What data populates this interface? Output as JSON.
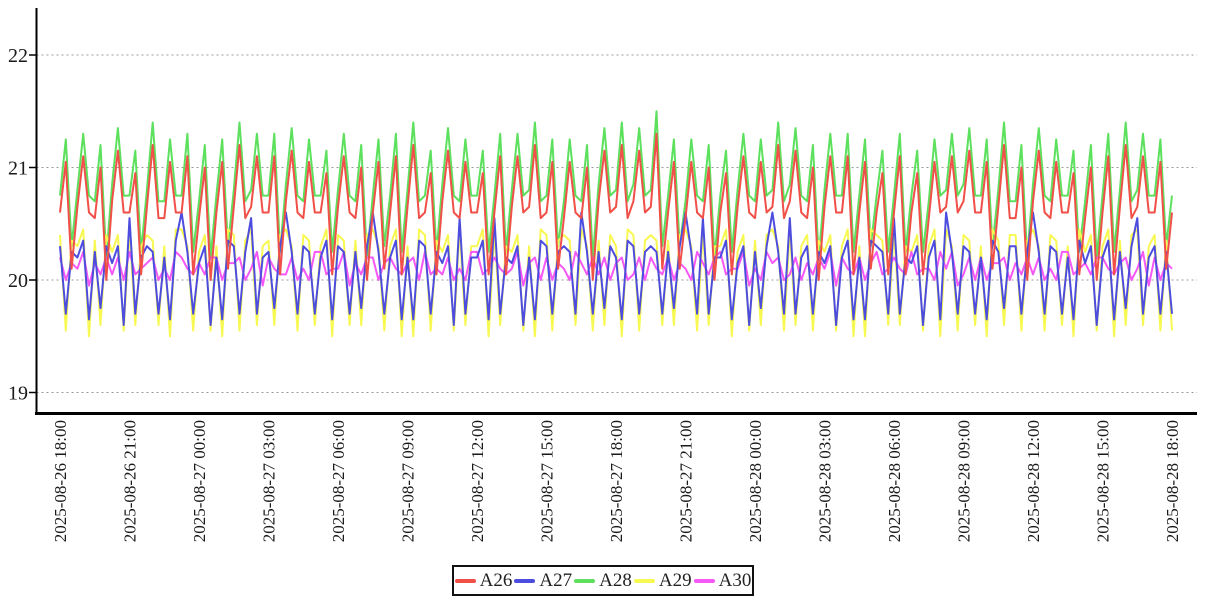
{
  "chart_data": {
    "type": "line",
    "title": "",
    "xlabel": "",
    "ylabel": "",
    "ylim": [
      18.85,
      22.45
    ],
    "x_start": "2025-08-26 18:00",
    "x_end": "2025-08-28 18:00",
    "sample_interval_minutes": 15,
    "grid": "horizontal-dotted",
    "legend_position": "bottom-center",
    "y_axis": {
      "ticks": [
        "22",
        "21",
        "20",
        "19"
      ]
    },
    "x_axis": {
      "ticks": [
        "2025-08-26 18:00",
        "2025-08-26 21:00",
        "2025-08-27 00:00",
        "2025-08-27 03:00",
        "2025-08-27 06:00",
        "2025-08-27 09:00",
        "2025-08-27 12:00",
        "2025-08-27 15:00",
        "2025-08-27 18:00",
        "2025-08-27 21:00",
        "2025-08-28 00:00",
        "2025-08-28 03:00",
        "2025-08-28 06:00",
        "2025-08-28 09:00",
        "2025-08-28 12:00",
        "2025-08-28 15:00",
        "2025-08-28 18:00"
      ]
    },
    "draw_order": [
      "A28",
      "A29",
      "A30",
      "A27",
      "A26"
    ],
    "colors": {
      "axis": "#000000",
      "grid": "#999999",
      "tick_text": "#1a1a1a",
      "background": "#ffffff"
    },
    "series": [
      {
        "name": "A26",
        "color": "#f05048",
        "values": [
          20.6,
          21.05,
          20.1,
          20.65,
          21.1,
          20.6,
          20.55,
          21.0,
          20.0,
          20.7,
          21.15,
          20.6,
          20.6,
          20.95,
          20.05,
          20.65,
          21.2,
          20.55,
          20.55,
          21.05,
          20.6,
          20.6,
          21.1,
          20.05,
          20.55,
          21.0,
          20.0,
          20.6,
          21.05,
          20.1,
          20.65,
          21.2,
          20.55,
          20.65,
          21.1,
          20.6,
          20.6,
          21.1,
          20.05,
          20.7,
          21.15,
          20.6,
          20.55,
          21.05,
          20.6,
          20.6,
          20.95,
          20.05,
          20.65,
          21.1,
          20.6,
          20.55,
          21.0,
          20.0,
          20.6,
          21.05,
          20.1,
          20.6,
          21.1,
          20.05,
          20.65,
          21.2,
          20.55,
          20.6,
          20.95,
          20.05,
          20.7,
          21.15,
          20.6,
          20.55,
          21.05,
          20.6,
          20.6,
          20.95,
          20.05,
          20.6,
          21.1,
          20.05,
          20.65,
          21.1,
          20.6,
          20.65,
          21.2,
          20.55,
          20.6,
          21.05,
          20.1,
          20.55,
          21.05,
          20.6,
          20.55,
          21.0,
          20.0,
          20.7,
          21.15,
          20.6,
          20.65,
          21.2,
          20.55,
          20.7,
          21.15,
          20.6,
          20.65,
          21.3,
          20.1,
          20.6,
          21.05,
          20.1,
          20.55,
          21.05,
          20.6,
          20.55,
          21.0,
          20.0,
          20.6,
          20.95,
          20.05,
          20.65,
          21.1,
          20.6,
          20.55,
          21.05,
          20.6,
          20.65,
          21.2,
          20.55,
          20.7,
          21.15,
          20.6,
          20.55,
          21.0,
          20.0,
          20.65,
          21.1,
          20.6,
          20.6,
          21.1,
          20.05,
          20.6,
          21.05,
          20.1,
          20.6,
          20.95,
          20.05,
          20.6,
          21.1,
          20.05,
          20.6,
          20.95,
          20.05,
          20.55,
          21.05,
          20.6,
          20.65,
          21.1,
          20.6,
          20.7,
          21.15,
          20.6,
          20.6,
          21.05,
          20.1,
          20.65,
          21.2,
          20.55,
          20.55,
          21.0,
          20.0,
          20.7,
          21.15,
          20.6,
          20.55,
          21.05,
          20.6,
          20.6,
          20.95,
          20.05,
          20.55,
          21.0,
          20.0,
          20.6,
          21.1,
          20.05,
          20.65,
          21.2,
          20.55,
          20.65,
          21.1,
          20.6,
          20.6,
          21.05,
          20.1,
          20.6
        ]
      },
      {
        "name": "A27",
        "color": "#4c4cdf",
        "values": [
          20.3,
          19.7,
          20.25,
          20.2,
          20.35,
          19.65,
          20.25,
          19.75,
          20.3,
          20.15,
          20.3,
          19.6,
          20.55,
          19.7,
          20.2,
          20.3,
          20.25,
          19.7,
          20.2,
          19.65,
          20.35,
          20.6,
          20.25,
          19.7,
          20.15,
          20.3,
          19.6,
          20.2,
          19.65,
          20.35,
          20.3,
          19.7,
          20.25,
          20.55,
          19.7,
          20.2,
          20.25,
          19.75,
          20.3,
          20.6,
          20.25,
          19.7,
          20.3,
          20.25,
          19.7,
          20.2,
          20.35,
          19.65,
          20.3,
          20.25,
          19.7,
          20.25,
          19.75,
          20.3,
          20.6,
          20.25,
          19.7,
          20.2,
          20.35,
          19.65,
          20.2,
          19.65,
          20.35,
          20.3,
          19.7,
          20.25,
          20.15,
          20.3,
          19.6,
          20.55,
          19.7,
          20.2,
          20.2,
          20.35,
          19.65,
          20.55,
          19.7,
          20.2,
          20.15,
          20.3,
          19.6,
          20.2,
          19.65,
          20.35,
          20.3,
          19.7,
          20.25,
          20.3,
          20.25,
          19.7,
          20.6,
          20.25,
          19.7,
          20.25,
          19.75,
          20.3,
          20.2,
          19.65,
          20.35,
          20.3,
          19.7,
          20.25,
          20.3,
          20.25,
          19.7,
          20.25,
          19.75,
          20.3,
          20.6,
          20.25,
          19.7,
          20.55,
          19.7,
          20.2,
          20.2,
          20.35,
          19.65,
          20.15,
          20.3,
          19.6,
          20.25,
          19.75,
          20.3,
          20.6,
          20.25,
          19.7,
          20.55,
          19.7,
          20.2,
          20.3,
          19.7,
          20.25,
          20.15,
          20.3,
          19.6,
          20.2,
          20.35,
          19.65,
          20.2,
          19.65,
          20.35,
          20.3,
          20.25,
          19.7,
          20.55,
          19.7,
          20.2,
          20.15,
          20.3,
          19.6,
          20.2,
          20.35,
          19.65,
          20.6,
          20.25,
          19.7,
          20.3,
          20.25,
          19.7,
          20.2,
          19.65,
          20.35,
          20.25,
          19.75,
          20.3,
          20.3,
          19.7,
          20.25,
          20.6,
          20.25,
          19.7,
          20.3,
          20.25,
          19.7,
          20.2,
          19.65,
          20.35,
          20.15,
          20.3,
          19.6,
          20.2,
          20.35,
          19.65,
          20.25,
          19.75,
          20.3,
          20.55,
          19.7,
          20.2,
          20.3,
          19.7,
          20.25,
          19.7
        ]
      },
      {
        "name": "A28",
        "color": "#5de05d",
        "values": [
          20.75,
          21.25,
          20.3,
          20.8,
          21.3,
          20.75,
          20.7,
          21.2,
          20.2,
          20.85,
          21.35,
          20.75,
          20.75,
          21.15,
          20.25,
          20.8,
          21.4,
          20.7,
          20.7,
          21.25,
          20.75,
          20.75,
          21.3,
          20.25,
          20.7,
          21.2,
          20.2,
          20.75,
          21.25,
          20.3,
          20.8,
          21.4,
          20.7,
          20.8,
          21.3,
          20.75,
          20.75,
          21.3,
          20.25,
          20.85,
          21.35,
          20.75,
          20.7,
          21.25,
          20.75,
          20.75,
          21.15,
          20.25,
          20.8,
          21.3,
          20.75,
          20.7,
          21.2,
          20.2,
          20.75,
          21.25,
          20.3,
          20.75,
          21.3,
          20.25,
          20.8,
          21.4,
          20.7,
          20.75,
          21.15,
          20.25,
          20.85,
          21.35,
          20.75,
          20.7,
          21.25,
          20.75,
          20.75,
          21.15,
          20.25,
          20.75,
          21.3,
          20.25,
          20.8,
          21.3,
          20.75,
          20.8,
          21.4,
          20.7,
          20.75,
          21.25,
          20.3,
          20.7,
          21.25,
          20.75,
          20.7,
          21.2,
          20.2,
          20.85,
          21.35,
          20.75,
          20.8,
          21.4,
          20.7,
          20.85,
          21.35,
          20.75,
          20.8,
          21.5,
          20.3,
          20.75,
          21.25,
          20.3,
          20.7,
          21.25,
          20.75,
          20.7,
          21.2,
          20.2,
          20.75,
          21.15,
          20.25,
          20.8,
          21.3,
          20.75,
          20.7,
          21.25,
          20.75,
          20.8,
          21.4,
          20.7,
          20.85,
          21.35,
          20.75,
          20.7,
          21.2,
          20.2,
          20.8,
          21.3,
          20.75,
          20.75,
          21.3,
          20.25,
          20.75,
          21.25,
          20.3,
          20.75,
          21.15,
          20.25,
          20.75,
          21.3,
          20.25,
          20.75,
          21.15,
          20.25,
          20.7,
          21.25,
          20.75,
          20.8,
          21.3,
          20.75,
          20.85,
          21.35,
          20.75,
          20.75,
          21.25,
          20.3,
          20.8,
          21.4,
          20.7,
          20.7,
          21.2,
          20.2,
          20.85,
          21.35,
          20.75,
          20.7,
          21.25,
          20.75,
          20.75,
          21.15,
          20.25,
          20.7,
          21.2,
          20.2,
          20.75,
          21.3,
          20.25,
          20.8,
          21.4,
          20.7,
          20.8,
          21.3,
          20.75,
          20.75,
          21.25,
          20.3,
          20.75
        ]
      },
      {
        "name": "A29",
        "color": "#f8f852",
        "values": [
          20.4,
          19.55,
          20.35,
          20.3,
          20.45,
          19.5,
          20.35,
          19.6,
          20.4,
          20.25,
          20.4,
          19.55,
          20.45,
          19.6,
          20.3,
          20.4,
          20.35,
          19.6,
          20.3,
          19.5,
          20.45,
          20.45,
          20.3,
          19.55,
          20.25,
          20.4,
          19.55,
          20.3,
          19.5,
          20.45,
          20.4,
          19.55,
          20.35,
          20.45,
          19.6,
          20.3,
          20.35,
          19.6,
          20.4,
          20.45,
          20.3,
          19.55,
          20.4,
          20.35,
          19.6,
          20.3,
          20.45,
          19.5,
          20.4,
          20.35,
          19.6,
          20.35,
          19.6,
          20.4,
          20.45,
          20.3,
          19.55,
          20.3,
          20.45,
          19.5,
          20.3,
          19.5,
          20.45,
          20.4,
          19.55,
          20.35,
          20.25,
          20.4,
          19.55,
          20.45,
          19.6,
          20.3,
          20.3,
          20.45,
          19.5,
          20.45,
          19.6,
          20.3,
          20.25,
          20.4,
          19.55,
          20.3,
          19.5,
          20.45,
          20.4,
          19.55,
          20.35,
          20.4,
          20.35,
          19.6,
          20.45,
          20.3,
          19.55,
          20.35,
          19.6,
          20.4,
          20.3,
          19.5,
          20.45,
          20.4,
          19.55,
          20.35,
          20.4,
          20.35,
          19.6,
          20.35,
          19.6,
          20.4,
          20.45,
          20.3,
          19.55,
          20.45,
          19.6,
          20.3,
          20.3,
          20.45,
          19.5,
          20.25,
          20.4,
          19.55,
          20.35,
          19.6,
          20.4,
          20.45,
          20.3,
          19.55,
          20.45,
          19.6,
          20.3,
          20.4,
          19.55,
          20.35,
          20.25,
          20.4,
          19.55,
          20.3,
          20.45,
          19.5,
          20.3,
          19.5,
          20.45,
          20.4,
          20.35,
          19.6,
          20.45,
          19.6,
          20.3,
          20.25,
          20.4,
          19.55,
          20.3,
          20.45,
          19.5,
          20.45,
          20.3,
          19.55,
          20.4,
          20.35,
          19.6,
          20.3,
          19.5,
          20.45,
          20.35,
          19.6,
          20.4,
          20.4,
          19.55,
          20.35,
          20.45,
          20.3,
          19.55,
          20.4,
          20.35,
          19.6,
          20.3,
          19.5,
          20.45,
          20.25,
          20.4,
          19.55,
          20.3,
          20.45,
          19.5,
          20.35,
          19.6,
          20.4,
          20.45,
          19.6,
          20.3,
          20.4,
          19.55,
          20.35,
          19.55
        ]
      },
      {
        "name": "A30",
        "color": "#f558f5",
        "values": [
          20.2,
          20.0,
          20.15,
          20.1,
          20.25,
          19.95,
          20.15,
          20.05,
          20.2,
          20.05,
          20.2,
          20.0,
          20.25,
          20.05,
          20.1,
          20.15,
          20.2,
          20.0,
          20.1,
          20.0,
          20.25,
          20.2,
          20.1,
          20.05,
          20.15,
          20.05,
          20.2,
          20.2,
          20.0,
          20.15,
          20.15,
          20.2,
          20.0,
          20.1,
          20.25,
          19.95,
          20.2,
          20.1,
          20.05,
          20.05,
          20.2,
          20.0,
          20.1,
          20.0,
          20.25,
          20.25,
          20.05,
          20.1,
          20.1,
          20.25,
          19.95,
          20.15,
          20.05,
          20.2,
          20.2,
          20.0,
          20.15,
          20.2,
          20.1,
          20.05,
          20.15,
          20.2,
          20.0,
          20.25,
          20.05,
          20.1,
          20.05,
          20.2,
          20.0,
          20.1,
          20.0,
          20.25,
          20.25,
          20.05,
          20.1,
          20.2,
          20.1,
          20.05,
          20.1,
          20.25,
          19.95,
          20.15,
          20.2,
          20.0,
          20.2,
          20.0,
          20.15,
          20.1,
          20.0,
          20.25,
          20.15,
          20.05,
          20.2,
          20.05,
          20.2,
          20.0,
          20.15,
          20.2,
          20.0,
          20.05,
          20.2,
          20.0,
          20.2,
          20.1,
          20.05,
          20.2,
          20.0,
          20.15,
          20.1,
          20.0,
          20.25,
          20.15,
          20.05,
          20.2,
          20.25,
          20.05,
          20.1,
          20.1,
          20.25,
          19.95,
          20.1,
          20.0,
          20.25,
          20.15,
          20.2,
          20.0,
          20.05,
          20.2,
          20.0,
          20.15,
          20.05,
          20.2,
          20.1,
          20.25,
          19.95,
          20.2,
          20.1,
          20.05,
          20.2,
          20.0,
          20.15,
          20.25,
          20.05,
          20.1,
          20.2,
          20.1,
          20.05,
          20.25,
          20.05,
          20.1,
          20.1,
          20.0,
          20.25,
          20.1,
          20.25,
          19.95,
          20.05,
          20.2,
          20.0,
          20.2,
          20.0,
          20.15,
          20.15,
          20.2,
          20.0,
          20.15,
          20.05,
          20.2,
          20.05,
          20.2,
          20.0,
          20.1,
          20.0,
          20.25,
          20.25,
          20.05,
          20.1,
          20.15,
          20.05,
          20.2,
          20.2,
          20.1,
          20.05,
          20.15,
          20.2,
          20.0,
          20.1,
          20.25,
          19.95,
          20.2,
          20.0,
          20.15,
          20.1
        ]
      }
    ]
  },
  "legend": {
    "items": [
      {
        "label": "A26",
        "color": "#f05048"
      },
      {
        "label": "A27",
        "color": "#4c4cdf"
      },
      {
        "label": "A28",
        "color": "#5de05d"
      },
      {
        "label": "A29",
        "color": "#f8f852"
      },
      {
        "label": "A30",
        "color": "#f558f5"
      }
    ]
  }
}
